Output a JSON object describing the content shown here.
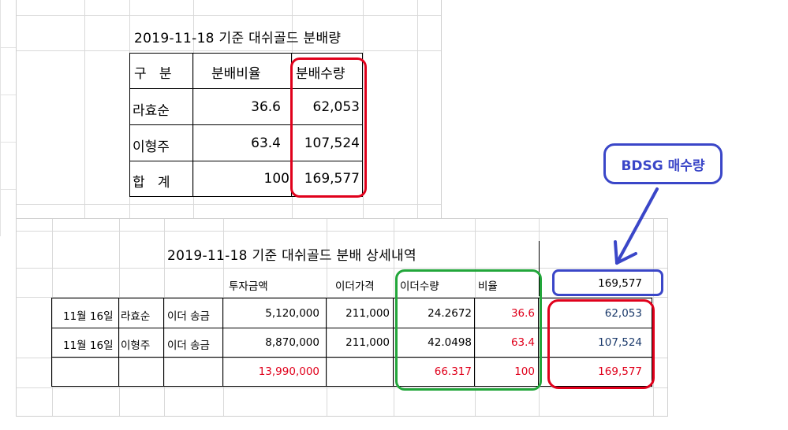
{
  "summary": {
    "title": "2019-11-18 기준 대쉬골드 분배량",
    "headers": [
      "구   분",
      "분배비율",
      "분배수량"
    ],
    "rows": [
      {
        "name": "라효순",
        "ratio": "36.6",
        "qty": "62,053"
      },
      {
        "name": "이형주",
        "ratio": "63.4",
        "qty": "107,524"
      },
      {
        "name": "합   계",
        "ratio": "100",
        "qty": "169,577"
      }
    ]
  },
  "detail": {
    "title": "2019-11-18 기준 대쉬골드 분배 상세내역",
    "headers": {
      "invest": "투자금액",
      "price": "이더가격",
      "eth_qty": "이더수량",
      "ratio": "비율",
      "bdsg_total": "169,577"
    },
    "rows": [
      {
        "date": "11월 16일",
        "name": "라효순",
        "type": "이더 송금",
        "invest": "5,120,000",
        "price": "211,000",
        "eth_qty": "24.2672",
        "ratio": "36.6",
        "bdsg": "62,053"
      },
      {
        "date": "11월 16일",
        "name": "이형주",
        "type": "이더 송금",
        "invest": "8,870,000",
        "price": "211,000",
        "eth_qty": "42.0498",
        "ratio": "63.4",
        "bdsg": "107,524"
      }
    ],
    "total": {
      "invest": "13,990,000",
      "eth_qty": "66.317",
      "ratio": "100",
      "bdsg": "169,577"
    }
  },
  "annotation": {
    "label": "BDSG 매수량"
  },
  "colors": {
    "red": "#e0001b",
    "green": "#22a63a",
    "blue": "#3a46c8",
    "navy": "#1b3a6b"
  }
}
